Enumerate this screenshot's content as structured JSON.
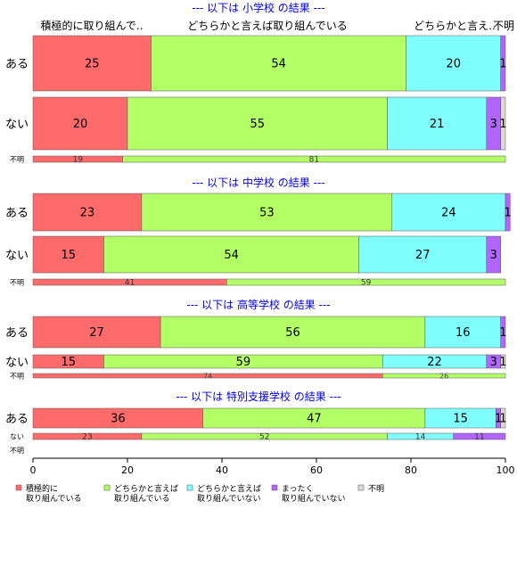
{
  "colors": {
    "積極的に取り組んでいる": "#ff6b6b",
    "どちらかと言えば取り組んでいる": "#b3ff66",
    "どちらかと言えば取り組んでいない": "#80ffff",
    "まったく取り組んでいない": "#b266ff",
    "不明": "#d9d9d9",
    "title": "#0000ee"
  },
  "chart_data": {
    "type": "bar",
    "orientation": "horizontal-stacked",
    "xlim": [
      0,
      100
    ],
    "xticks": [
      0,
      20,
      40,
      60,
      80,
      100
    ],
    "top_labels": [
      "積極的に取り組んで..",
      "どちらかと言えば取り組んでいる",
      "どちらかと言え..",
      "不明"
    ],
    "legend": {
      "placement": "bottom",
      "entries": [
        {
          "key": "積極的に取り組んでいる",
          "lines": [
            "積極的に",
            "取り組んでいる"
          ]
        },
        {
          "key": "どちらかと言えば取り組んでいる",
          "lines": [
            "どちらかと言えば",
            "取り組んでいる"
          ]
        },
        {
          "key": "どちらかと言えば取り組んでいない",
          "lines": [
            "どちらかと言えば",
            "取り組んでいない"
          ]
        },
        {
          "key": "まったく取り組んでいない",
          "lines": [
            "まったく",
            "取り組んでいない"
          ]
        },
        {
          "key": "不明",
          "lines": [
            "不明"
          ]
        }
      ]
    },
    "panels": [
      {
        "title": "--- 以下は 小学校 の結果 ---",
        "rows": [
          {
            "label": "ある",
            "values": [
              25,
              54,
              20,
              1,
              0
            ],
            "labels": [
              "25",
              "54",
              "20",
              "1",
              ""
            ]
          },
          {
            "label": "ない",
            "values": [
              20,
              55,
              21,
              3,
              1
            ],
            "labels": [
              "20",
              "55",
              "21",
              "3",
              "1"
            ]
          },
          {
            "label": "不明",
            "values": [
              19,
              81,
              0,
              0,
              0
            ],
            "labels": [
              "19",
              "81",
              "",
              "",
              ""
            ]
          }
        ]
      },
      {
        "title": "--- 以下は 中学校 の結果 ---",
        "rows": [
          {
            "label": "ある",
            "values": [
              23,
              53,
              24,
              1,
              0
            ],
            "labels": [
              "23",
              "53",
              "24",
              "1",
              ""
            ]
          },
          {
            "label": "ない",
            "values": [
              15,
              54,
              27,
              3,
              0
            ],
            "labels": [
              "15",
              "54",
              "27",
              "3",
              ""
            ]
          },
          {
            "label": "不明",
            "values": [
              41,
              59,
              0,
              0,
              0
            ],
            "labels": [
              "41",
              "59",
              "",
              "",
              ""
            ]
          }
        ]
      },
      {
        "title": "--- 以下は 高等学校 の結果 ---",
        "rows": [
          {
            "label": "ある",
            "values": [
              27,
              56,
              16,
              1,
              0
            ],
            "labels": [
              "27",
              "56",
              "16",
              "1",
              ""
            ]
          },
          {
            "label": "ない",
            "values": [
              15,
              59,
              22,
              3,
              1
            ],
            "labels": [
              "15",
              "59",
              "22",
              "3",
              "1"
            ]
          },
          {
            "label": "不明",
            "values": [
              74,
              26,
              0,
              0,
              0
            ],
            "labels": [
              "74",
              "26",
              "",
              "",
              ""
            ]
          }
        ]
      },
      {
        "title": "--- 以下は 特別支援学校 の結果 ---",
        "rows": [
          {
            "label": "ある",
            "values": [
              36,
              47,
              15,
              1,
              1
            ],
            "labels": [
              "36",
              "47",
              "15",
              "1",
              "1"
            ]
          },
          {
            "label": "ない",
            "values": [
              23,
              52,
              14,
              11,
              0
            ],
            "labels": [
              "23",
              "52",
              "14",
              "11",
              ""
            ]
          },
          {
            "label": "不明",
            "values": [
              0,
              0,
              0,
              0,
              0
            ],
            "labels": [
              "",
              "",
              "",
              "",
              ""
            ]
          }
        ]
      }
    ]
  }
}
